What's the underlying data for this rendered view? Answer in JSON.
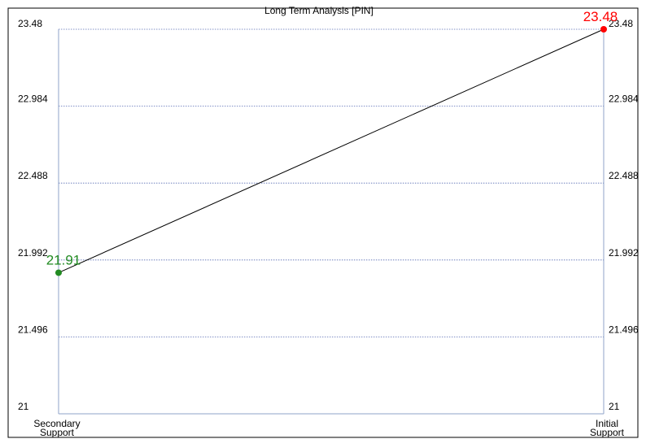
{
  "chart_data": {
    "type": "line",
    "title": "Long Term Analysis [PIN]",
    "categories": [
      "Secondary Support",
      "Initial Support"
    ],
    "category_lines": [
      [
        "Secondary",
        "Support"
      ],
      [
        "Initial",
        "Support"
      ]
    ],
    "values": [
      21.91,
      23.48
    ],
    "data_labels": [
      "21.91",
      "23.48"
    ],
    "point_colors": [
      "#228b22",
      "#ff0000"
    ],
    "line_color": "#000000",
    "grid_color": "#5b6fb5",
    "axis_color": "#8fa3c8",
    "ylim": [
      21,
      23.48
    ],
    "yticks": [
      21,
      21.496,
      21.992,
      22.488,
      22.984,
      23.48
    ],
    "ytick_labels": [
      "21",
      "21.496",
      "21.992",
      "22.488",
      "22.984",
      "23.48"
    ],
    "grid": true,
    "dual_y_axis": true
  }
}
